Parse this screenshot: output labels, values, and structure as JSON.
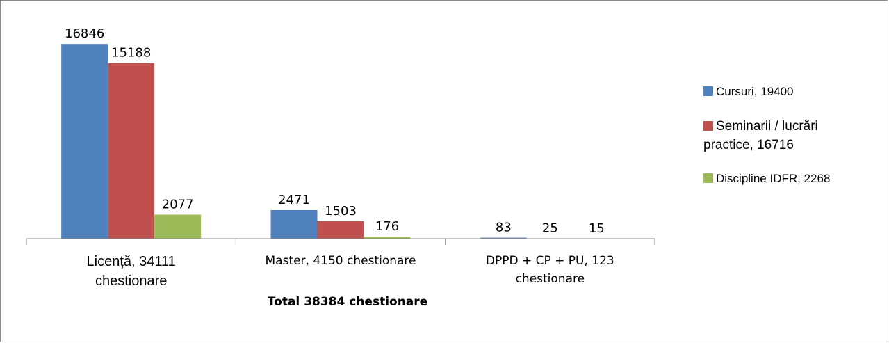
{
  "chart_data": {
    "type": "bar",
    "categories": [
      "Licență, 34111 chestionare",
      "Master, 4150 chestionare",
      "DPPD + CP + PU, 123 chestionare"
    ],
    "series": [
      {
        "name": "Cursuri, 19400",
        "color": "#4f81bd",
        "values": [
          16846,
          2471,
          83
        ]
      },
      {
        "name": "Seminarii / lucrări practice, 16716",
        "color": "#c0504d",
        "values": [
          15188,
          1503,
          25
        ]
      },
      {
        "name": "Discipline IDFR, 2268",
        "color": "#9bbb59",
        "values": [
          2077,
          176,
          15
        ]
      }
    ],
    "ylim": [
      0,
      18000
    ],
    "x_label": "Total 38384 chestionare",
    "legend": "right"
  }
}
